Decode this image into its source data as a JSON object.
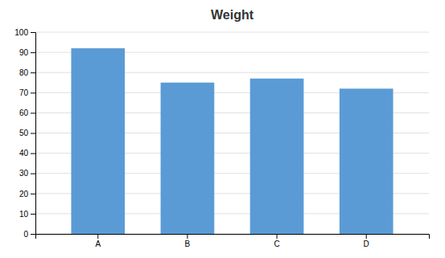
{
  "chart_data": {
    "type": "bar",
    "title": "Weight",
    "categories": [
      "A",
      "B",
      "C",
      "D"
    ],
    "values": [
      92,
      75,
      77,
      72
    ],
    "color": "#5B9BD5",
    "ylim": [
      0,
      100
    ],
    "yticks": [
      0,
      10,
      20,
      30,
      40,
      50,
      60,
      70,
      80,
      90,
      100
    ],
    "grid": true
  }
}
